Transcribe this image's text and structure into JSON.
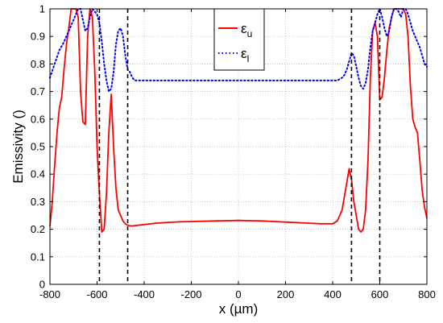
{
  "chart_data": {
    "type": "line",
    "xlabel": "x (µm)",
    "ylabel": "Emissivity ()",
    "xlim": [
      -800,
      800
    ],
    "ylim": [
      0,
      1
    ],
    "x_ticks": [
      -800,
      -600,
      -400,
      -200,
      0,
      200,
      400,
      600,
      800
    ],
    "y_ticks": [
      0,
      0.1,
      0.2,
      0.3,
      0.4,
      0.5,
      0.6,
      0.7,
      0.8,
      0.9,
      1
    ],
    "x_tick_labels": [
      "-800",
      "-600",
      "-400",
      "-200",
      "0",
      "200",
      "400",
      "600",
      "800"
    ],
    "y_tick_labels": [
      "0",
      "0.1",
      "0.2",
      "0.3",
      "0.4",
      "0.5",
      "0.6",
      "0.7",
      "0.8",
      "0.9",
      "1"
    ],
    "grid": true,
    "legend_position": "top-center",
    "vertical_lines": [
      -590,
      -470,
      480,
      600
    ],
    "series": [
      {
        "name_main": "ε",
        "name_sub": "u",
        "style": "solid",
        "color": "#ff0000",
        "x": [
          -800,
          -790,
          -780,
          -770,
          -760,
          -750,
          -740,
          -730,
          -720,
          -710,
          -700,
          -690,
          -680,
          -670,
          -660,
          -650,
          -640,
          -630,
          -620,
          -610,
          -600,
          -590,
          -580,
          -570,
          -560,
          -550,
          -540,
          -530,
          -520,
          -510,
          -500,
          -490,
          -480,
          -470,
          -460,
          -450,
          -440,
          -430,
          -420,
          -400,
          -350,
          -300,
          -250,
          -200,
          -150,
          -100,
          -50,
          0,
          50,
          100,
          150,
          200,
          250,
          300,
          350,
          380,
          400,
          420,
          440,
          460,
          470,
          480,
          490,
          500,
          510,
          520,
          530,
          540,
          550,
          560,
          570,
          580,
          590,
          600,
          610,
          620,
          630,
          640,
          650,
          660,
          670,
          680,
          690,
          700,
          710,
          720,
          730,
          740,
          750,
          760,
          770,
          780,
          790,
          800
        ],
        "y": [
          0.21,
          0.3,
          0.43,
          0.55,
          0.64,
          0.68,
          0.78,
          0.87,
          0.93,
          1.0,
          1.0,
          1.0,
          0.97,
          0.7,
          0.59,
          0.58,
          0.9,
          1.0,
          0.97,
          0.78,
          0.5,
          0.33,
          0.19,
          0.2,
          0.33,
          0.55,
          0.69,
          0.5,
          0.35,
          0.27,
          0.25,
          0.23,
          0.22,
          0.215,
          0.212,
          0.212,
          0.213,
          0.214,
          0.215,
          0.217,
          0.222,
          0.225,
          0.227,
          0.228,
          0.229,
          0.23,
          0.231,
          0.232,
          0.231,
          0.23,
          0.228,
          0.226,
          0.224,
          0.222,
          0.22,
          0.22,
          0.22,
          0.23,
          0.27,
          0.37,
          0.42,
          0.38,
          0.3,
          0.25,
          0.2,
          0.19,
          0.2,
          0.27,
          0.45,
          0.75,
          0.92,
          0.95,
          0.9,
          0.67,
          0.68,
          0.75,
          0.85,
          0.93,
          0.97,
          1.0,
          1.0,
          1.0,
          1.0,
          1.0,
          0.98,
          0.9,
          0.72,
          0.6,
          0.57,
          0.55,
          0.45,
          0.34,
          0.28,
          0.24
        ]
      },
      {
        "name_main": "ε",
        "name_sub": "l",
        "style": "dotted",
        "color": "#0000ff",
        "x": [
          -800,
          -780,
          -760,
          -740,
          -720,
          -700,
          -690,
          -680,
          -670,
          -660,
          -650,
          -640,
          -630,
          -620,
          -610,
          -600,
          -590,
          -580,
          -570,
          -560,
          -550,
          -540,
          -530,
          -520,
          -510,
          -500,
          -490,
          -480,
          -470,
          -460,
          -450,
          -440,
          -430,
          -420,
          -400,
          -350,
          -300,
          -250,
          -200,
          -150,
          -100,
          -50,
          0,
          50,
          100,
          150,
          200,
          250,
          300,
          350,
          400,
          420,
          440,
          450,
          460,
          470,
          480,
          490,
          500,
          510,
          520,
          530,
          540,
          550,
          560,
          570,
          580,
          590,
          600,
          610,
          620,
          630,
          640,
          650,
          660,
          670,
          680,
          690,
          700,
          710,
          720,
          730,
          740,
          750,
          760,
          770,
          780,
          790,
          800
        ],
        "y": [
          0.75,
          0.8,
          0.85,
          0.88,
          0.92,
          0.96,
          0.98,
          1.0,
          1.0,
          0.96,
          0.92,
          0.93,
          0.97,
          1.0,
          0.99,
          0.98,
          0.95,
          0.88,
          0.8,
          0.74,
          0.7,
          0.71,
          0.77,
          0.87,
          0.92,
          0.93,
          0.9,
          0.83,
          0.78,
          0.77,
          0.75,
          0.74,
          0.74,
          0.74,
          0.74,
          0.74,
          0.74,
          0.74,
          0.74,
          0.74,
          0.74,
          0.74,
          0.74,
          0.74,
          0.74,
          0.74,
          0.74,
          0.74,
          0.74,
          0.74,
          0.74,
          0.74,
          0.75,
          0.76,
          0.78,
          0.81,
          0.84,
          0.83,
          0.79,
          0.75,
          0.72,
          0.71,
          0.73,
          0.78,
          0.86,
          0.92,
          0.95,
          0.98,
          1.0,
          0.97,
          0.93,
          0.9,
          0.92,
          0.97,
          1.0,
          1.0,
          0.99,
          0.97,
          1.0,
          1.0,
          0.98,
          0.95,
          0.92,
          0.9,
          0.88,
          0.86,
          0.83,
          0.8,
          0.79
        ]
      }
    ]
  }
}
